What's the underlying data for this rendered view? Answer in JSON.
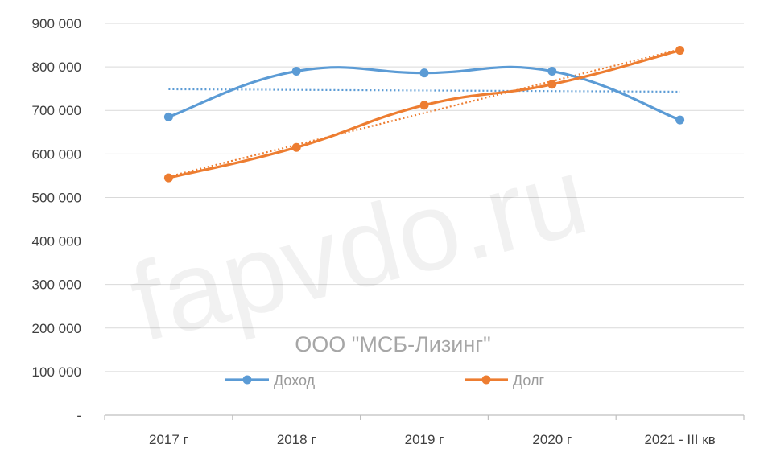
{
  "watermark": "fapvdo.ru",
  "chart_data": {
    "type": "line",
    "title": "ООО \"МСБ-Лизинг\"",
    "categories": [
      "2017 г",
      "2018 г",
      "2019 г",
      "2020 г",
      "2021 - III кв"
    ],
    "series": [
      {
        "name": "Доход",
        "color": "#5b9bd5",
        "values": [
          685000,
          790000,
          786000,
          790000,
          678000
        ],
        "trendline": "linear"
      },
      {
        "name": "Долг",
        "color": "#ed7d31",
        "values": [
          545000,
          615000,
          712000,
          760000,
          838000
        ],
        "trendline": "linear"
      }
    ],
    "y_ticks": [
      "-",
      "100 000",
      "200 000",
      "300 000",
      "400 000",
      "500 000",
      "600 000",
      "700 000",
      "800 000",
      "900 000"
    ],
    "ylim": [
      0,
      900000
    ],
    "grid": true,
    "legend_position": "bottom-inside",
    "xlabel": "",
    "ylabel": ""
  }
}
